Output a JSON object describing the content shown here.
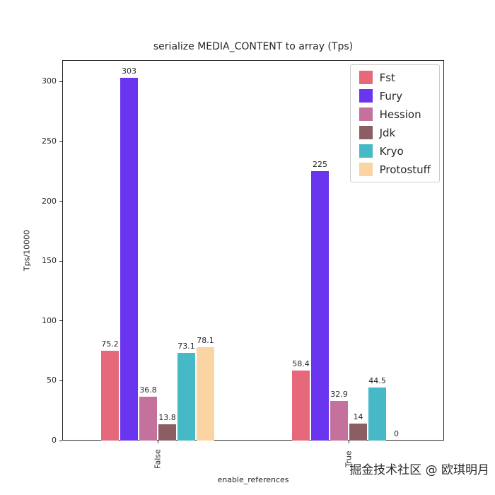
{
  "watermark": "掘金技术社区 @ 欧琪明月",
  "chart_data": {
    "type": "bar",
    "title": "serialize MEDIA_CONTENT to array (Tps)",
    "xlabel": "enable_references",
    "ylabel": "Tps/10000",
    "categories": [
      "False",
      "True"
    ],
    "series": [
      {
        "name": "Fst",
        "color": "#e5697a",
        "values": [
          75.2,
          58.4
        ]
      },
      {
        "name": "Fury",
        "color": "#6a35ee",
        "values": [
          303,
          225
        ]
      },
      {
        "name": "Hession",
        "color": "#c4719c",
        "values": [
          36.8,
          32.9
        ]
      },
      {
        "name": "Jdk",
        "color": "#8a5e62",
        "values": [
          13.8,
          14
        ]
      },
      {
        "name": "Kryo",
        "color": "#47b8c6",
        "values": [
          73.1,
          44.5
        ]
      },
      {
        "name": "Protostuff",
        "color": "#fbd4a3",
        "values": [
          78.1,
          0
        ]
      }
    ],
    "yticks": [
      0,
      50,
      100,
      150,
      200,
      250,
      300
    ],
    "ylim": [
      0,
      318
    ],
    "legend_position": "upper right",
    "grid": false
  }
}
